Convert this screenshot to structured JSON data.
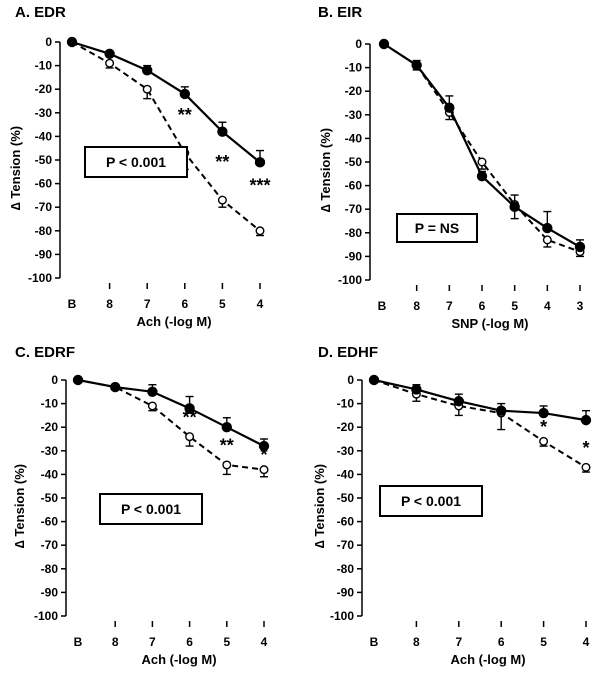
{
  "chart_data": [
    {
      "type": "line",
      "title": "A. EDR",
      "xlabel": "Ach (-log M)",
      "ylabel": "∆ Tension (%)",
      "x_ticks": [
        "B",
        "8",
        "7",
        "6",
        "5",
        "4"
      ],
      "ylim": [
        -100,
        0
      ],
      "y_ticks": [
        "0",
        "-10",
        "-20",
        "-30",
        "-40",
        "-50",
        "-60",
        "-70",
        "-80",
        "-90",
        "-100"
      ],
      "stat_label": "P < 0.001",
      "series": [
        {
          "marker": "filled",
          "line": "solid",
          "color": "#000000",
          "x": [
            "B",
            "8",
            "7",
            "6",
            "5",
            "4"
          ],
          "values": [
            0,
            -5,
            -12,
            -22,
            -38,
            -51
          ],
          "error": [
            0,
            1,
            2,
            3,
            4,
            5
          ]
        },
        {
          "marker": "open",
          "line": "dashed",
          "color": "#000000",
          "x": [
            "B",
            "8",
            "7",
            "6",
            "5",
            "4"
          ],
          "values": [
            0,
            -9,
            -20,
            -47,
            -67,
            -80
          ],
          "error": [
            0,
            2,
            4,
            7,
            3,
            2
          ]
        }
      ],
      "significance": [
        {
          "x": "6",
          "y": -30,
          "text": "**"
        },
        {
          "x": "5",
          "y": -50,
          "text": "**"
        },
        {
          "x": "4",
          "y": -60,
          "text": "***"
        }
      ]
    },
    {
      "type": "line",
      "title": "B. EIR",
      "xlabel": "SNP (-log M)",
      "ylabel": "∆ Tension (%)",
      "x_ticks": [
        "B",
        "8",
        "7",
        "6",
        "5",
        "4",
        "3"
      ],
      "ylim": [
        -100,
        0
      ],
      "y_ticks": [
        "0",
        "-10",
        "-20",
        "-30",
        "-40",
        "-50",
        "-60",
        "-70",
        "-80",
        "-90",
        "-100"
      ],
      "stat_label": "P = NS",
      "series": [
        {
          "marker": "filled",
          "line": "solid",
          "color": "#000000",
          "x": [
            "B",
            "8",
            "7",
            "6",
            "5",
            "4",
            "3"
          ],
          "values": [
            0,
            -9,
            -27,
            -56,
            -69,
            -78,
            -86
          ],
          "error": [
            0,
            2,
            5,
            2,
            5,
            7,
            3
          ]
        },
        {
          "marker": "open",
          "line": "dashed",
          "color": "#000000",
          "x": [
            "B",
            "8",
            "7",
            "6",
            "5",
            "4",
            "3"
          ],
          "values": [
            0,
            -9,
            -29,
            -50,
            -68,
            -83,
            -88
          ],
          "error": [
            0,
            2,
            3,
            3,
            6,
            3,
            2
          ]
        }
      ],
      "significance": []
    },
    {
      "type": "line",
      "title": "C. EDRF",
      "xlabel": "Ach (-log M)",
      "ylabel": "∆ Tension (%)",
      "x_ticks": [
        "B",
        "8",
        "7",
        "6",
        "5",
        "4"
      ],
      "ylim": [
        -100,
        0
      ],
      "y_ticks": [
        "0",
        "-10",
        "-20",
        "-30",
        "-40",
        "-50",
        "-60",
        "-70",
        "-80",
        "-90",
        "-100"
      ],
      "stat_label": "P < 0.001",
      "series": [
        {
          "marker": "filled",
          "line": "solid",
          "color": "#000000",
          "x": [
            "B",
            "8",
            "7",
            "6",
            "5",
            "4"
          ],
          "values": [
            0,
            -3,
            -5,
            -12,
            -20,
            -28
          ],
          "error": [
            0,
            1,
            3,
            5,
            4,
            3
          ]
        },
        {
          "marker": "open",
          "line": "dashed",
          "color": "#000000",
          "x": [
            "B",
            "8",
            "7",
            "6",
            "5",
            "4"
          ],
          "values": [
            0,
            -3,
            -11,
            -24,
            -36,
            -38
          ],
          "error": [
            0,
            1,
            2,
            4,
            4,
            3
          ]
        }
      ],
      "significance": [
        {
          "x": "6",
          "y": -15,
          "text": "**"
        },
        {
          "x": "5",
          "y": -27,
          "text": "**"
        },
        {
          "x": "4",
          "y": -31,
          "text": "*"
        }
      ]
    },
    {
      "type": "line",
      "title": "D. EDHF",
      "xlabel": "Ach (-log M)",
      "ylabel": "∆ Tension (%)",
      "x_ticks": [
        "B",
        "8",
        "7",
        "6",
        "5",
        "4"
      ],
      "ylim": [
        -100,
        0
      ],
      "y_ticks": [
        "0",
        "-10",
        "-20",
        "-30",
        "-40",
        "-50",
        "-60",
        "-70",
        "-80",
        "-90",
        "-100"
      ],
      "stat_label": "P < 0.001",
      "series": [
        {
          "marker": "filled",
          "line": "solid",
          "color": "#000000",
          "x": [
            "B",
            "8",
            "7",
            "6",
            "5",
            "4"
          ],
          "values": [
            0,
            -4,
            -9,
            -13,
            -14,
            -17
          ],
          "error": [
            0,
            2,
            3,
            3,
            3,
            4
          ]
        },
        {
          "marker": "open",
          "line": "dashed",
          "color": "#000000",
          "x": [
            "B",
            "8",
            "7",
            "6",
            "5",
            "4"
          ],
          "values": [
            0,
            -6,
            -11,
            -14,
            -26,
            -37
          ],
          "error": [
            0,
            3,
            4,
            7,
            2,
            2
          ]
        }
      ],
      "significance": [
        {
          "x": "5",
          "y": -19,
          "text": "*"
        },
        {
          "x": "4",
          "y": -28,
          "text": "*"
        }
      ]
    }
  ]
}
